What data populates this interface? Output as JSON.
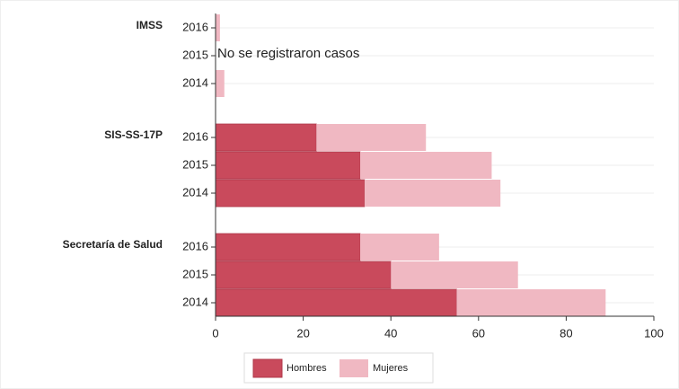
{
  "chart_data": {
    "type": "bar",
    "orientation": "horizontal",
    "stacked": true,
    "group_labels": [
      "IMSS",
      "SIS-SS-17P",
      "Secretaría de Salud"
    ],
    "categories": [
      "2016",
      "2015",
      "2014",
      "2016",
      "2015",
      "2014",
      "2016",
      "2015",
      "2014"
    ],
    "series": [
      {
        "name": "Hombres",
        "color": "#c94a5c",
        "values": [
          0,
          null,
          0,
          23,
          33,
          34,
          33,
          40,
          55
        ]
      },
      {
        "name": "Mujeres",
        "color": "#f0b8c2",
        "values": [
          1,
          null,
          2,
          25,
          30,
          31,
          18,
          29,
          34
        ]
      }
    ],
    "annotations": [
      {
        "category": 1,
        "text": "No se  registraron casos"
      }
    ],
    "xlim": [
      0,
      100
    ],
    "xticks": [
      0,
      20,
      40,
      60,
      80,
      100
    ]
  }
}
